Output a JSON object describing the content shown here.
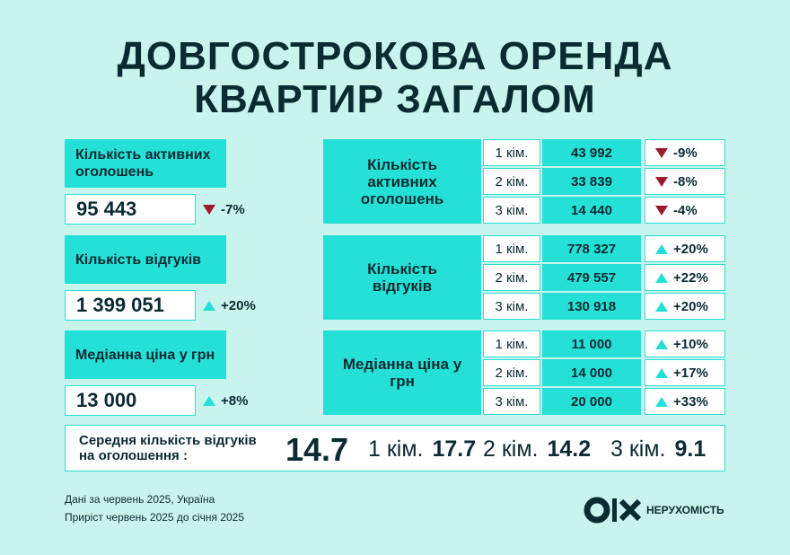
{
  "header": {
    "title_lines": [
      "ДОВГОСТРОКОВА ОРЕНДА",
      "КВАРТИР ЗАГАЛОМ"
    ]
  },
  "cards": [
    {
      "label": "Кількість активних оголошень",
      "value": "95 443",
      "change": "-7%"
    },
    {
      "label": "Кількість відгуків",
      "value": "1 399 051",
      "change": "+20%"
    },
    {
      "label": "Медіанна ціна у грн",
      "value": "13 000",
      "change": "+8%"
    }
  ],
  "tables": [
    {
      "label": "Кількість активних оголошень",
      "rows": [
        [
          "1 кім.",
          "43 992",
          "-9%"
        ],
        [
          "2 кім.",
          "33 839",
          "-8%"
        ],
        [
          "3 кім.",
          "14 440",
          "-4%"
        ]
      ]
    },
    {
      "label": "Кількість відгуків",
      "rows": [
        [
          "1 кім.",
          "778 327",
          "+20%"
        ],
        [
          "2 кім.",
          "479 557",
          "+22%"
        ],
        [
          "3 кім.",
          "130 918",
          "+20%"
        ]
      ]
    },
    {
      "label": "Медіанна ціна у грн",
      "rows": [
        [
          "1 кім.",
          "11 000",
          "+10%"
        ],
        [
          "2 кім.",
          "14 000",
          "+17%"
        ],
        [
          "3 кім.",
          "20 000",
          "+33%"
        ]
      ]
    }
  ],
  "summary": {
    "label": "Середня кількість відгуків на оголошення :",
    "overall": "14.7",
    "items": [
      {
        "room": "1 кім.",
        "value": "17.7"
      },
      {
        "room": "2 кім.",
        "value": "14.2"
      },
      {
        "room": "3 кім.",
        "value": "9.1"
      }
    ]
  },
  "footer": {
    "notes": [
      "Дані за червень 2025, Україна",
      "Приріст червень 2025 до січня 2025"
    ],
    "brand": "НЕРУХОМІСТЬ"
  }
}
